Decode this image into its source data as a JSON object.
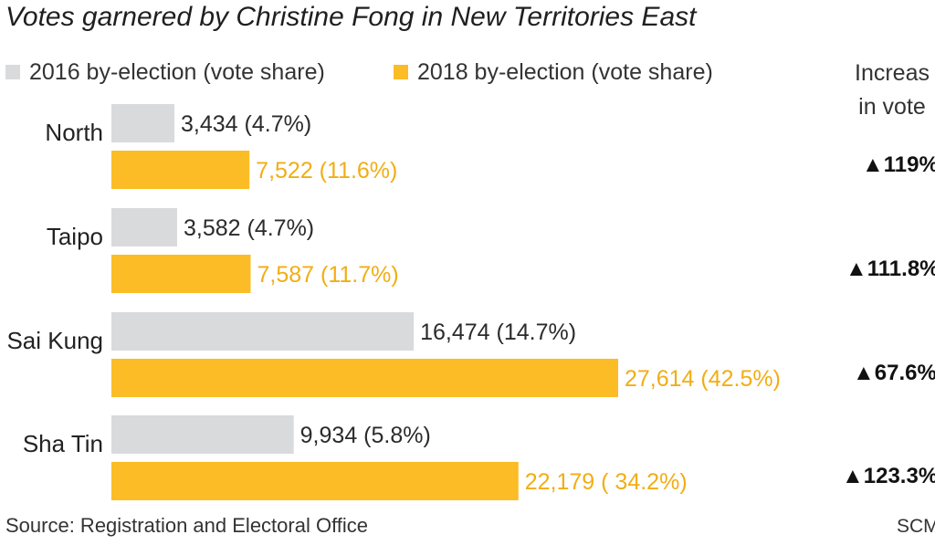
{
  "colors": {
    "series_2016": "#d9dadc",
    "series_2018": "#fbbc26",
    "label_2016": "#2b2b2b",
    "label_2018": "#f2ad14"
  },
  "increase_header": [
    "Increas",
    "in vote"
  ],
  "source": "Source: Registration and Electoral Office",
  "credit": "SCM",
  "chart_data": {
    "type": "bar",
    "orientation": "horizontal",
    "title": "Votes garnered by Christine Fong in New Territories East",
    "categories": [
      "North",
      "Taipo",
      "Sai Kung",
      "Sha Tin"
    ],
    "series": [
      {
        "name": "2016 by-election (vote share)",
        "values": [
          3434,
          3582,
          16474,
          9934
        ],
        "labels": [
          "3,434 (4.7%)",
          "3,582 (4.7%)",
          "16,474 (14.7%)",
          "9,934 (5.8%)"
        ]
      },
      {
        "name": "2018 by-election (vote share)",
        "values": [
          7522,
          7587,
          27614,
          22179
        ],
        "labels": [
          "7,522 (11.6%)",
          "7,587 (11.7%)",
          "27,614 (42.5%)",
          "22,179 ( 34.2%)"
        ]
      }
    ],
    "increase": [
      "▲119%",
      "▲111.8%",
      "▲67.6%",
      "▲123.3%"
    ],
    "grid": false,
    "legend_position": "top"
  }
}
